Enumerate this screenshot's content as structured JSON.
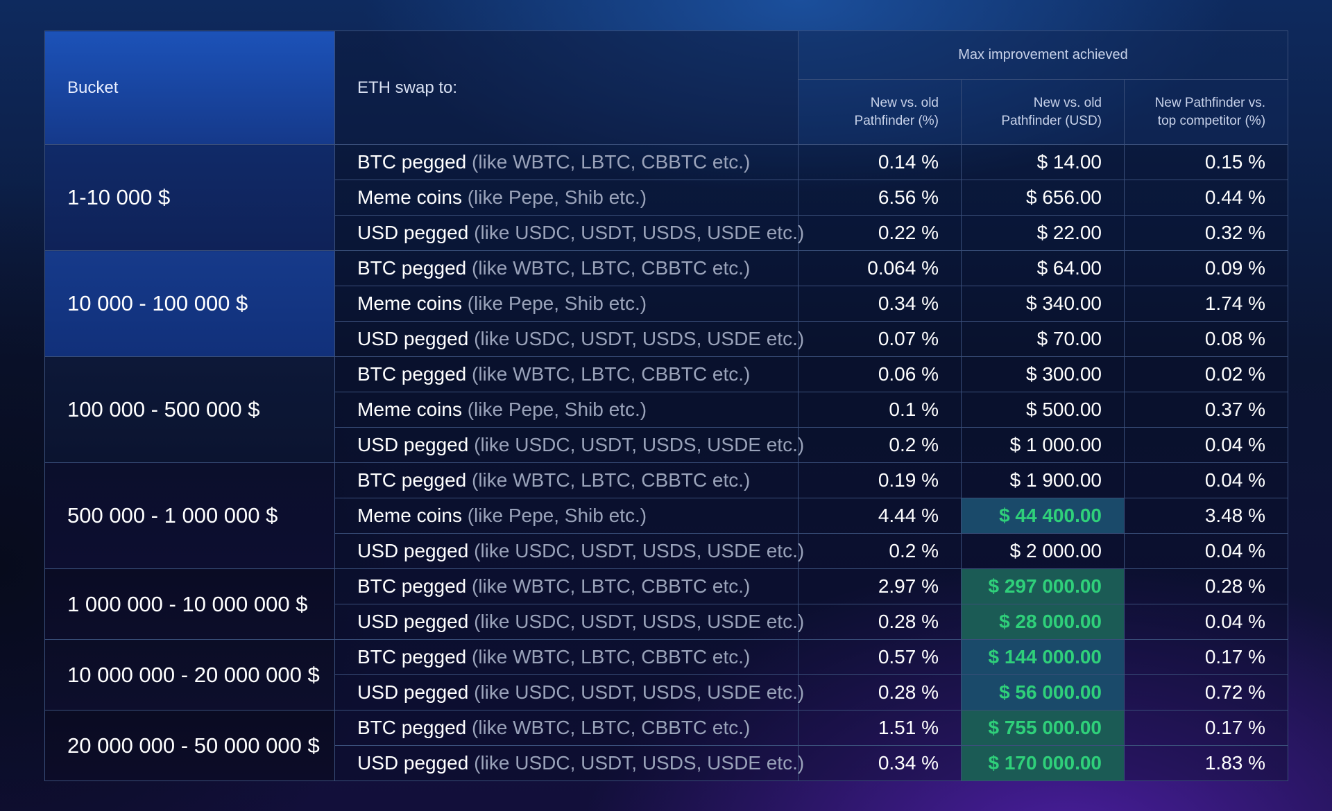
{
  "header": {
    "bucket": "Bucket",
    "swap_to": "ETH swap to:",
    "group": "Max improvement achieved",
    "col_pct_line1": "New vs. old",
    "col_pct_line2": "Pathfinder (%)",
    "col_usd_line1": "New vs. old",
    "col_usd_line2": "Pathfinder (USD)",
    "col_comp_line1": "New Pathfinder vs.",
    "col_comp_line2": "top competitor (%)"
  },
  "assets": {
    "btc_main": "BTC pegged",
    "btc_hint": "(like WBTC, LBTC, CBBTC etc.)",
    "meme_main": "Meme coins",
    "meme_hint": "(like Pepe, Shib etc.)",
    "usd_main": "USD pegged",
    "usd_hint": "(like USDC, USDT, USDS, USDE etc.)"
  },
  "buckets": [
    {
      "label": "1-10 000 $",
      "rows": [
        {
          "pct": "0.14 %",
          "usd": "$ 14.00",
          "comp": "0.15 %"
        },
        {
          "pct": "6.56 %",
          "usd": "$ 656.00",
          "comp": "0.44 %"
        },
        {
          "pct": "0.22 %",
          "usd": "$ 22.00",
          "comp": "0.32 %"
        }
      ]
    },
    {
      "label": "10 000 - 100 000 $",
      "rows": [
        {
          "pct": "0.064 %",
          "usd": "$ 64.00",
          "comp": "0.09 %"
        },
        {
          "pct": "0.34 %",
          "usd": "$ 340.00",
          "comp": "1.74 %"
        },
        {
          "pct": "0.07 %",
          "usd": "$ 70.00",
          "comp": "0.08 %"
        }
      ]
    },
    {
      "label": "100 000 - 500 000 $",
      "rows": [
        {
          "pct": "0.06 %",
          "usd": "$ 300.00",
          "comp": "0.02 %"
        },
        {
          "pct": "0.1 %",
          "usd": "$ 500.00",
          "comp": "0.37 %"
        },
        {
          "pct": "0.2 %",
          "usd": "$ 1 000.00",
          "comp": "0.04 %"
        }
      ]
    },
    {
      "label": "500 000 - 1 000 000 $",
      "rows": [
        {
          "pct": "0.19 %",
          "usd": "$ 1 900.00",
          "comp": "0.04 %"
        },
        {
          "pct": "4.44 %",
          "usd": "$ 44 400.00",
          "comp": "3.48 %"
        },
        {
          "pct": "0.2 %",
          "usd": "$ 2 000.00",
          "comp": "0.04 %"
        }
      ]
    },
    {
      "label": "1 000 000 - 10 000 000 $",
      "rows": [
        {
          "pct": "2.97 %",
          "usd": "$ 297 000.00",
          "comp": "0.28 %"
        },
        {
          "pct": "0.28 %",
          "usd": "$ 28 000.00",
          "comp": "0.04 %"
        }
      ]
    },
    {
      "label": "10 000 000 - 20 000 000 $",
      "rows": [
        {
          "pct": "0.57 %",
          "usd": "$ 144 000.00",
          "comp": "0.17 %"
        },
        {
          "pct": "0.28 %",
          "usd": "$ 56 000.00",
          "comp": "0.72 %"
        }
      ]
    },
    {
      "label": "20 000 000 - 50 000 000 $",
      "rows": [
        {
          "pct": "1.51 %",
          "usd": "$ 755 000.00",
          "comp": "0.17 %"
        },
        {
          "pct": "0.34 %",
          "usd": "$ 170 000.00",
          "comp": "1.83 %"
        }
      ]
    }
  ],
  "colors": {
    "highlight_text": "#2fd07a",
    "highlight_bg": "#1a4a6a",
    "hint_text": "#9aa3ba",
    "border": "#3a4f7a"
  }
}
